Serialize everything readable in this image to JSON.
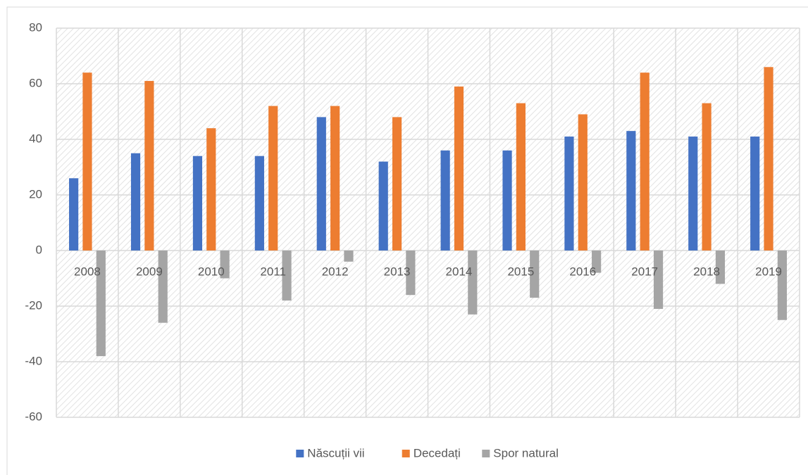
{
  "chart_data": {
    "type": "bar",
    "categories": [
      "2008",
      "2009",
      "2010",
      "2011",
      "2012",
      "2013",
      "2014",
      "2015",
      "2016",
      "2017",
      "2018",
      "2019"
    ],
    "series": [
      {
        "name": "Născuții vii",
        "color": "#4472c4",
        "values": [
          26,
          35,
          34,
          34,
          48,
          32,
          36,
          36,
          41,
          43,
          41,
          41
        ]
      },
      {
        "name": "Decedați",
        "color": "#ed7d31",
        "values": [
          64,
          61,
          44,
          52,
          52,
          48,
          59,
          53,
          49,
          64,
          53,
          66
        ]
      },
      {
        "name": "Spor natural",
        "color": "#a5a5a5",
        "values": [
          -38,
          -26,
          -10,
          -18,
          -4,
          -16,
          -23,
          -17,
          -8,
          -21,
          -12,
          -25
        ]
      }
    ],
    "ylim": [
      -60,
      80
    ],
    "yticks": [
      -60,
      -40,
      -20,
      0,
      20,
      40,
      60,
      80
    ],
    "grid": true,
    "legend": "bottom"
  }
}
